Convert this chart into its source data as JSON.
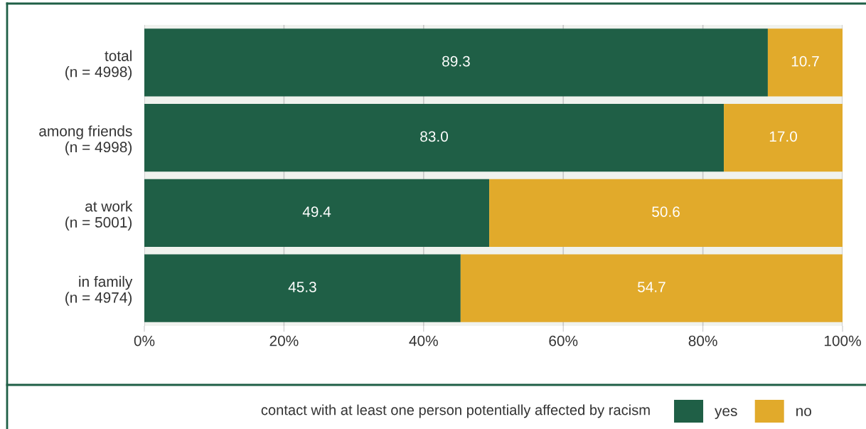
{
  "chart_data": {
    "type": "bar",
    "orientation": "horizontal",
    "stacked": true,
    "categories": [
      "total\n(n = 4998)",
      "among friends\n(n = 4998)",
      "at work\n(n = 5001)",
      "in family\n(n = 4974)"
    ],
    "series": [
      {
        "name": "yes",
        "color": "#1f5f46",
        "values": [
          89.3,
          83.0,
          49.4,
          45.3
        ]
      },
      {
        "name": "no",
        "color": "#e1aa2b",
        "values": [
          10.7,
          17.0,
          50.6,
          54.7
        ]
      }
    ],
    "value_labels": [
      [
        "89.3",
        "83.0",
        "49.4",
        "45.3"
      ],
      [
        "10.7",
        "17.0",
        "50.6",
        "54.7"
      ]
    ],
    "xlim": [
      0,
      100
    ],
    "xticks": [
      {
        "value": 0,
        "label": "0%"
      },
      {
        "value": 20,
        "label": "20%"
      },
      {
        "value": 40,
        "label": "40%"
      },
      {
        "value": 60,
        "label": "60%"
      },
      {
        "value": 80,
        "label": "80%"
      },
      {
        "value": 100,
        "label": "100%"
      }
    ],
    "grid": "x",
    "legend": "bottom",
    "legend_title": "contact with at least one person potentially affected by racism"
  }
}
